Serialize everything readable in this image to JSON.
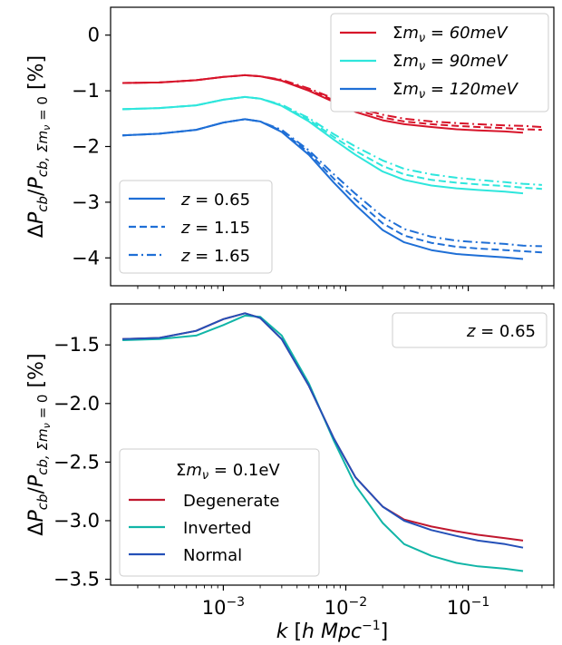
{
  "chart_data": [
    {
      "type": "line",
      "xlabel": "",
      "ylabel": "ΔPcb/Pcb, Σmν = 0 [%]",
      "xscale": "log",
      "xlim": [
        0.00012,
        0.5
      ],
      "ylim": [
        -4.5,
        0.5
      ],
      "yticks": [
        0,
        -1,
        -2,
        -3,
        -4
      ],
      "ytick_labels": [
        "0",
        "−1",
        "−2",
        "−3",
        "−4"
      ],
      "legend_mass_placement": "top-right",
      "legend_z_placement": "bottom-left",
      "mass_legend": [
        {
          "label": "Σmν = 60meV",
          "color": "#d7142a"
        },
        {
          "label": "Σmν = 90meV",
          "color": "#2ee6dc"
        },
        {
          "label": "Σmν = 120meV",
          "color": "#1f6fd6"
        }
      ],
      "z_legend": [
        {
          "label": "z = 0.65",
          "dash": "solid"
        },
        {
          "label": "z = 1.15",
          "dash": "dashed"
        },
        {
          "label": "z = 1.65",
          "dash": "dashdot"
        }
      ],
      "x": [
        0.00015,
        0.0003,
        0.0006,
        0.001,
        0.0015,
        0.002,
        0.003,
        0.005,
        0.008,
        0.012,
        0.02,
        0.03,
        0.05,
        0.08,
        0.12,
        0.2,
        0.28,
        0.4
      ],
      "series": [
        {
          "name": "Σmν = 60meV, z = 0.65",
          "color": "#d7142a",
          "dash": "solid",
          "values": [
            -0.86,
            -0.85,
            -0.81,
            -0.75,
            -0.72,
            -0.74,
            -0.82,
            -1.0,
            -1.2,
            -1.38,
            -1.53,
            -1.6,
            -1.65,
            -1.69,
            -1.71,
            -1.73,
            -1.75,
            null
          ]
        },
        {
          "name": "Σmν = 60meV, z = 1.15",
          "color": "#d7142a",
          "dash": "dashed",
          "values": [
            -0.86,
            -0.85,
            -0.81,
            -0.75,
            -0.72,
            -0.74,
            -0.81,
            -0.98,
            -1.17,
            -1.34,
            -1.48,
            -1.55,
            -1.6,
            -1.63,
            -1.65,
            -1.67,
            -1.69,
            -1.7
          ]
        },
        {
          "name": "Σmν = 60meV, z = 1.65",
          "color": "#d7142a",
          "dash": "dashdot",
          "values": [
            -0.86,
            -0.85,
            -0.81,
            -0.75,
            -0.72,
            -0.74,
            -0.8,
            -0.96,
            -1.14,
            -1.3,
            -1.43,
            -1.5,
            -1.55,
            -1.58,
            -1.6,
            -1.62,
            -1.63,
            -1.65
          ]
        },
        {
          "name": "Σmν = 90meV, z = 0.65",
          "color": "#2ee6dc",
          "dash": "solid",
          "values": [
            -1.33,
            -1.31,
            -1.26,
            -1.16,
            -1.11,
            -1.14,
            -1.27,
            -1.55,
            -1.88,
            -2.15,
            -2.45,
            -2.6,
            -2.7,
            -2.75,
            -2.78,
            -2.81,
            -2.84,
            null
          ]
        },
        {
          "name": "Σmν = 90meV, z = 1.15",
          "color": "#2ee6dc",
          "dash": "dashed",
          "values": [
            -1.33,
            -1.31,
            -1.26,
            -1.16,
            -1.11,
            -1.14,
            -1.26,
            -1.52,
            -1.83,
            -2.08,
            -2.35,
            -2.5,
            -2.6,
            -2.65,
            -2.68,
            -2.71,
            -2.74,
            -2.76
          ]
        },
        {
          "name": "Σmν = 90meV, z = 1.65",
          "color": "#2ee6dc",
          "dash": "dashdot",
          "values": [
            -1.33,
            -1.31,
            -1.26,
            -1.16,
            -1.11,
            -1.14,
            -1.25,
            -1.49,
            -1.78,
            -2.0,
            -2.25,
            -2.4,
            -2.5,
            -2.56,
            -2.6,
            -2.64,
            -2.67,
            -2.69
          ]
        },
        {
          "name": "Σmν = 120meV, z = 0.65",
          "color": "#1f6fd6",
          "dash": "solid",
          "values": [
            -1.8,
            -1.77,
            -1.7,
            -1.57,
            -1.51,
            -1.55,
            -1.74,
            -2.15,
            -2.65,
            -3.05,
            -3.5,
            -3.72,
            -3.86,
            -3.93,
            -3.96,
            -3.99,
            -4.02,
            null
          ]
        },
        {
          "name": "Σmν = 120meV, z = 1.15",
          "color": "#1f6fd6",
          "dash": "dashed",
          "values": [
            -1.8,
            -1.77,
            -1.7,
            -1.57,
            -1.51,
            -1.55,
            -1.72,
            -2.11,
            -2.58,
            -2.95,
            -3.38,
            -3.6,
            -3.73,
            -3.8,
            -3.83,
            -3.86,
            -3.88,
            -3.9
          ]
        },
        {
          "name": "Σmν = 120meV, z = 1.65",
          "color": "#1f6fd6",
          "dash": "dashdot",
          "values": [
            -1.8,
            -1.77,
            -1.7,
            -1.57,
            -1.51,
            -1.55,
            -1.7,
            -2.07,
            -2.5,
            -2.85,
            -3.26,
            -3.48,
            -3.62,
            -3.69,
            -3.72,
            -3.75,
            -3.78,
            -3.79
          ]
        }
      ]
    },
    {
      "type": "line",
      "xlabel": "k [h Mpc⁻¹]",
      "ylabel": "ΔPcb/Pcb, Σmν = 0 [%]",
      "xscale": "log",
      "xlim": [
        0.00012,
        0.5
      ],
      "ylim": [
        -3.55,
        -1.15
      ],
      "yticks": [
        -1.5,
        -2.0,
        -2.5,
        -3.0,
        -3.5
      ],
      "ytick_labels": [
        "−1.5",
        "−2.0",
        "−2.5",
        "−3.0",
        "−3.5"
      ],
      "xtick_labels": [
        "10⁻³",
        "10⁻²",
        "10⁻¹"
      ],
      "annotation": "z =  0.65",
      "annotation_placement": "top-right",
      "legend_title": "Σmν =  0.1eV",
      "legend_placement": "bottom-left",
      "x": [
        0.00015,
        0.0003,
        0.0006,
        0.001,
        0.0015,
        0.002,
        0.003,
        0.005,
        0.008,
        0.012,
        0.02,
        0.03,
        0.05,
        0.08,
        0.12,
        0.2,
        0.28
      ],
      "series": [
        {
          "name": "Degenerate",
          "color": "#c0182f",
          "values": [
            -1.45,
            -1.44,
            -1.38,
            -1.28,
            -1.23,
            -1.27,
            -1.45,
            -1.85,
            -2.3,
            -2.63,
            -2.88,
            -2.99,
            -3.05,
            -3.09,
            -3.12,
            -3.15,
            -3.17
          ]
        },
        {
          "name": "Inverted",
          "color": "#11b5a7",
          "values": [
            -1.46,
            -1.45,
            -1.42,
            -1.33,
            -1.25,
            -1.26,
            -1.42,
            -1.83,
            -2.32,
            -2.7,
            -3.02,
            -3.2,
            -3.3,
            -3.36,
            -3.39,
            -3.41,
            -3.43
          ]
        },
        {
          "name": "Normal",
          "color": "#2450b8",
          "values": [
            -1.45,
            -1.44,
            -1.38,
            -1.28,
            -1.23,
            -1.27,
            -1.45,
            -1.85,
            -2.3,
            -2.63,
            -2.88,
            -3.0,
            -3.08,
            -3.13,
            -3.17,
            -3.2,
            -3.23
          ]
        }
      ]
    }
  ]
}
